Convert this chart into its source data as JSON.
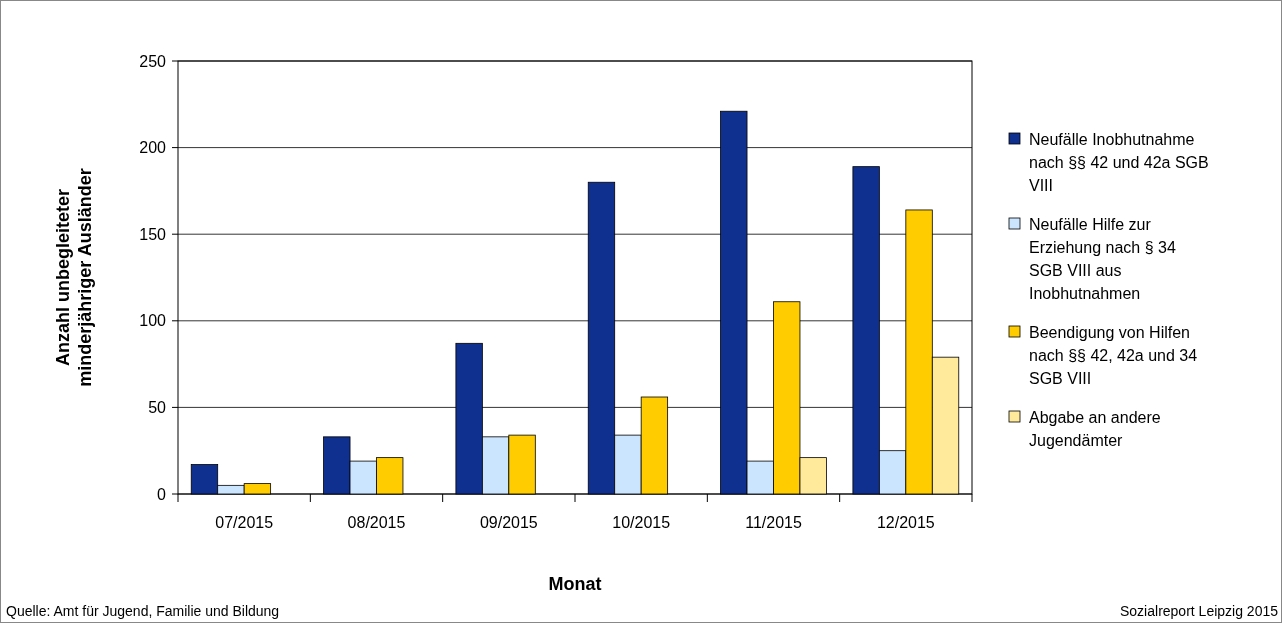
{
  "chart_data": {
    "type": "bar",
    "xlabel": "Monat",
    "ylabel": "Anzahl unbegleiteter\nminderjähriger Ausländer",
    "categories": [
      "07/2015",
      "08/2015",
      "09/2015",
      "10/2015",
      "11/2015",
      "12/2015"
    ],
    "series": [
      {
        "name": "Neufälle Inobhutnahme nach §§ 42 und 42a SGB VIII",
        "color": "#10308f",
        "values": [
          17,
          33,
          87,
          180,
          221,
          189
        ]
      },
      {
        "name": "Neufälle Hilfe zur Erziehung nach § 34 SGB VIII aus Inobhutnahmen",
        "color": "#cce5ff",
        "values": [
          5,
          19,
          33,
          34,
          19,
          25
        ]
      },
      {
        "name": "Beendigung von Hilfen nach §§ 42, 42a und 34 SGB VIII",
        "color": "#ffcc00",
        "values": [
          6,
          21,
          34,
          56,
          111,
          164
        ]
      },
      {
        "name": "Abgabe an andere Jugendämter",
        "color": "#ffe99a",
        "values": [
          0,
          0,
          0,
          0,
          21,
          79
        ]
      }
    ],
    "ylim": [
      0,
      250
    ],
    "yticks": [
      0,
      50,
      100,
      150,
      200,
      250
    ],
    "grid": "y",
    "legend": "right",
    "annotations": [
      "Quelle: Amt für Jugend, Familie und Bildung",
      "Sozialreport Leipzig 2015"
    ]
  }
}
